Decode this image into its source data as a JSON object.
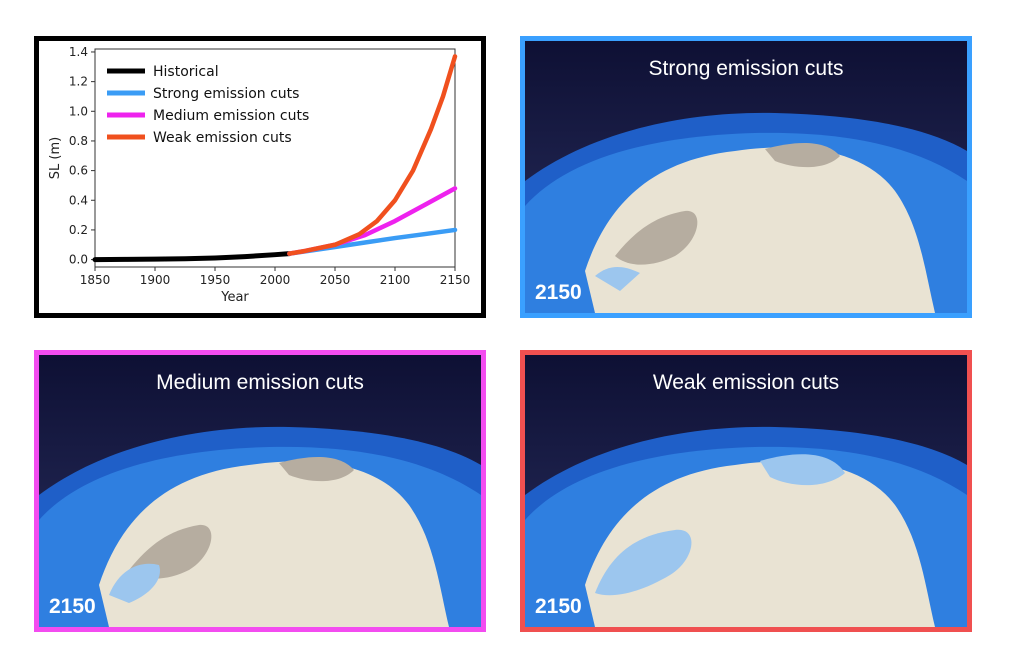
{
  "chart_data": {
    "type": "line",
    "xlabel": "Year",
    "ylabel": "SL (m)",
    "xlim": [
      1850,
      2150
    ],
    "ylim": [
      -0.05,
      1.42
    ],
    "xticks": [
      "1850",
      "1900",
      "1950",
      "2000",
      "2050",
      "2100",
      "2150"
    ],
    "yticks": [
      "0.0",
      "0.2",
      "0.4",
      "0.6",
      "0.8",
      "1.0",
      "1.2",
      "1.4"
    ],
    "legend_position": "top-left",
    "grid": false,
    "series": [
      {
        "name": "Historical",
        "color": "#000000",
        "x": [
          1850,
          1875,
          1900,
          1925,
          1950,
          1975,
          2000,
          2012
        ],
        "y": [
          0.0,
          0.001,
          0.003,
          0.006,
          0.011,
          0.02,
          0.033,
          0.04
        ]
      },
      {
        "name": "Strong emission cuts",
        "color": "#3a9cf5",
        "x": [
          2012,
          2025,
          2050,
          2075,
          2100,
          2125,
          2150
        ],
        "y": [
          0.04,
          0.055,
          0.085,
          0.115,
          0.145,
          0.172,
          0.2
        ]
      },
      {
        "name": "Medium emission cuts",
        "color": "#ee22ee",
        "x": [
          2012,
          2025,
          2050,
          2075,
          2100,
          2125,
          2150
        ],
        "y": [
          0.04,
          0.058,
          0.1,
          0.165,
          0.26,
          0.37,
          0.48
        ]
      },
      {
        "name": "Weak emission cuts",
        "color": "#f0501e",
        "x": [
          2012,
          2025,
          2050,
          2070,
          2085,
          2100,
          2115,
          2130,
          2140,
          2150
        ],
        "y": [
          0.04,
          0.058,
          0.1,
          0.17,
          0.26,
          0.4,
          0.6,
          0.88,
          1.1,
          1.37
        ]
      }
    ]
  },
  "panels": {
    "strong": {
      "title": "Strong emission cuts",
      "year": "2150",
      "color": "#3aa0ff"
    },
    "medium": {
      "title": "Medium emission cuts",
      "year": "2150",
      "color": "#f34cf0"
    },
    "weak": {
      "title": "Weak emission cuts",
      "year": "2150",
      "color": "#f05050"
    }
  }
}
